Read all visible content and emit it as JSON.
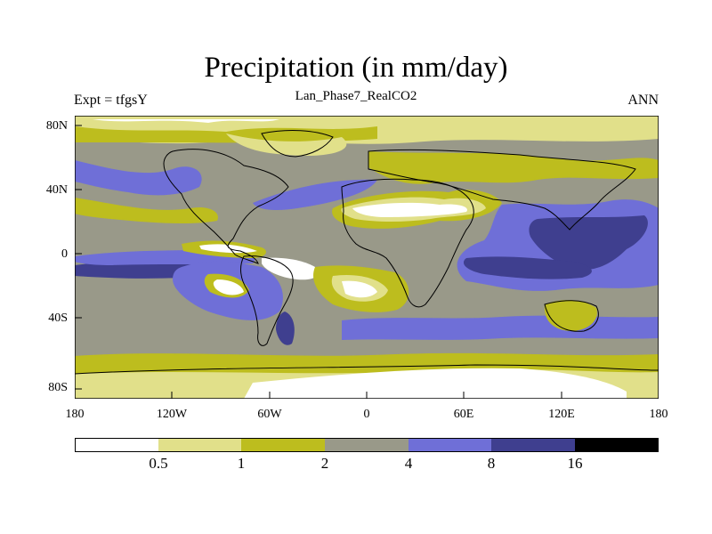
{
  "map": {
    "title": "Precipitation (in mm/day)",
    "subtitle": "Lan_Phase7_RealCO2",
    "left_string": "Expt = tfgsY",
    "right_string": "ANN",
    "lat_labels": [
      "80N",
      "40N",
      "0",
      "40S",
      "80S"
    ],
    "lon_labels": [
      "180",
      "120W",
      "60W",
      "0",
      "60E",
      "120E",
      "180"
    ],
    "colorbar": {
      "levels": [
        "0.5",
        "1",
        "2",
        "4",
        "8",
        "16"
      ],
      "colors": [
        "#ffffff",
        "#e1e08a",
        "#bdbd1e",
        "#999989",
        "#6f6fd7",
        "#3f3f8f",
        "#000000"
      ]
    },
    "map_icon": "world-map-contour"
  }
}
